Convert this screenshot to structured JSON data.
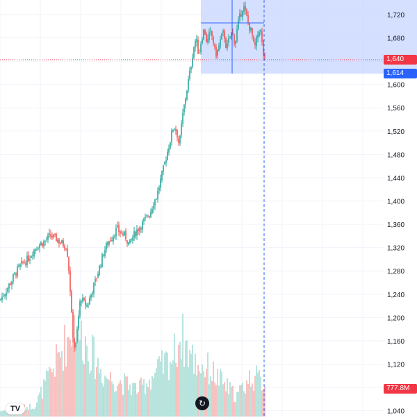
{
  "price_axis": {
    "ticks": [
      "1,720",
      "1,680",
      "1,640",
      "1,600",
      "1,560",
      "1,520",
      "1,480",
      "1,440",
      "1,400",
      "1,360",
      "1,320",
      "1,280",
      "1,240",
      "1,200",
      "1,160",
      "1,120",
      "1,080",
      "1,040"
    ],
    "tick_values": [
      1720,
      1680,
      1640,
      1600,
      1560,
      1520,
      1480,
      1440,
      1400,
      1360,
      1320,
      1280,
      1240,
      1200,
      1160,
      1120,
      1080,
      1040
    ],
    "last_price_label": "1,640",
    "crosshair_price_label": "1,614",
    "volume_label": "777.8M",
    "last_price": 1640,
    "crosshair_price": 1614
  },
  "colors": {
    "up": "#26a69a",
    "down": "#ef5350",
    "vol_up": "#a8ddd6",
    "vol_down": "#f6b3b1",
    "grid": "#f0f3fa",
    "last_price_line": "#f23645",
    "crosshair": "#2962ff",
    "selection": "#c7d4ff"
  },
  "controls": {
    "reset_icon": "reset-chart-icon",
    "logo_text": "TV"
  },
  "chart_data": {
    "type": "candlestick",
    "title": "",
    "ylim": [
      1030,
      1745
    ],
    "grid": true,
    "price_trend": [
      [
        0,
        1230
      ],
      [
        8,
        1245
      ],
      [
        16,
        1262
      ],
      [
        24,
        1280
      ],
      [
        32,
        1292
      ],
      [
        40,
        1300
      ],
      [
        48,
        1315
      ],
      [
        56,
        1325
      ],
      [
        64,
        1330
      ],
      [
        72,
        1340
      ],
      [
        80,
        1336
      ],
      [
        88,
        1328
      ],
      [
        96,
        1322
      ],
      [
        100,
        1270
      ],
      [
        104,
        1180
      ],
      [
        108,
        1140
      ],
      [
        112,
        1190
      ],
      [
        116,
        1236
      ],
      [
        120,
        1225
      ],
      [
        126,
        1220
      ],
      [
        132,
        1245
      ],
      [
        138,
        1265
      ],
      [
        144,
        1290
      ],
      [
        150,
        1315
      ],
      [
        156,
        1330
      ],
      [
        162,
        1340
      ],
      [
        168,
        1352
      ],
      [
        174,
        1345
      ],
      [
        180,
        1340
      ],
      [
        186,
        1325
      ],
      [
        192,
        1340
      ],
      [
        198,
        1352
      ],
      [
        204,
        1360
      ],
      [
        210,
        1370
      ],
      [
        216,
        1380
      ],
      [
        220,
        1395
      ],
      [
        226,
        1410
      ],
      [
        232,
        1440
      ],
      [
        238,
        1470
      ],
      [
        244,
        1500
      ],
      [
        250,
        1530
      ],
      [
        254,
        1520
      ],
      [
        258,
        1495
      ],
      [
        262,
        1540
      ],
      [
        266,
        1570
      ],
      [
        270,
        1600
      ],
      [
        274,
        1625
      ],
      [
        278,
        1660
      ],
      [
        282,
        1680
      ],
      [
        286,
        1650
      ],
      [
        290,
        1680
      ],
      [
        294,
        1695
      ],
      [
        298,
        1670
      ],
      [
        302,
        1690
      ],
      [
        306,
        1680
      ],
      [
        310,
        1650
      ],
      [
        314,
        1660
      ],
      [
        318,
        1680
      ],
      [
        322,
        1690
      ],
      [
        326,
        1660
      ],
      [
        330,
        1680
      ],
      [
        334,
        1690
      ],
      [
        338,
        1670
      ],
      [
        342,
        1700
      ],
      [
        346,
        1720
      ],
      [
        350,
        1735
      ],
      [
        354,
        1720
      ],
      [
        358,
        1700
      ],
      [
        362,
        1690
      ],
      [
        366,
        1660
      ],
      [
        370,
        1680
      ],
      [
        374,
        1700
      ],
      [
        378,
        1660
      ],
      [
        381,
        1640
      ]
    ],
    "volume_peaks": [
      [
        0,
        0.04
      ],
      [
        50,
        0.08
      ],
      [
        100,
        0.6
      ],
      [
        106,
        0.7
      ],
      [
        150,
        0.3
      ],
      [
        200,
        0.2
      ],
      [
        250,
        0.45
      ],
      [
        260,
        0.6
      ],
      [
        280,
        0.4
      ],
      [
        300,
        0.35
      ],
      [
        340,
        0.15
      ],
      [
        362,
        0.3
      ],
      [
        380,
        0.25
      ]
    ]
  }
}
